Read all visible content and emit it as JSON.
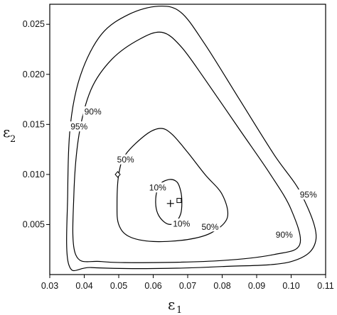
{
  "chart_data": {
    "type": "contour",
    "xlabel": "ε",
    "xlabel_subscript": "1",
    "ylabel": "ε",
    "ylabel_subscript": "2",
    "xlim": [
      0.03,
      0.11
    ],
    "ylim": [
      0.0,
      0.027
    ],
    "x_ticks": [
      "0.03",
      "0.04",
      "0.05",
      "0.06",
      "0.07",
      "0.08",
      "0.09",
      "0.10",
      "0.11"
    ],
    "y_ticks": [
      "0.005",
      "0.010",
      "0.015",
      "0.020",
      "0.025"
    ],
    "x_tick_values": [
      0.03,
      0.04,
      0.05,
      0.06,
      0.07,
      0.08,
      0.09,
      0.1,
      0.11
    ],
    "y_tick_values": [
      0.005,
      0.01,
      0.015,
      0.02,
      0.025
    ],
    "contours": [
      {
        "level": "10%",
        "points": [
          [
            0.0607,
            0.0072
          ],
          [
            0.0612,
            0.0085
          ],
          [
            0.0625,
            0.0092
          ],
          [
            0.065,
            0.0095
          ],
          [
            0.067,
            0.0092
          ],
          [
            0.068,
            0.0083
          ],
          [
            0.0683,
            0.0072
          ],
          [
            0.068,
            0.0061
          ],
          [
            0.0667,
            0.0053
          ],
          [
            0.065,
            0.005
          ],
          [
            0.063,
            0.0053
          ],
          [
            0.0613,
            0.0061
          ]
        ],
        "labels": [
          {
            "text": "10%",
            "x": 0.0613,
            "y": 0.0087
          },
          {
            "text": "10%",
            "x": 0.0682,
            "y": 0.0051
          }
        ]
      },
      {
        "level": "50%",
        "points": [
          [
            0.0495,
            0.007
          ],
          [
            0.05,
            0.01
          ],
          [
            0.052,
            0.012
          ],
          [
            0.058,
            0.014
          ],
          [
            0.0622,
            0.0146
          ],
          [
            0.0655,
            0.014
          ],
          [
            0.07,
            0.0122
          ],
          [
            0.075,
            0.01
          ],
          [
            0.08,
            0.008
          ],
          [
            0.0815,
            0.0057
          ],
          [
            0.077,
            0.0042
          ],
          [
            0.07,
            0.0035
          ],
          [
            0.06,
            0.0033
          ],
          [
            0.053,
            0.0038
          ],
          [
            0.05,
            0.005
          ]
        ],
        "labels": [
          {
            "text": "50%",
            "x": 0.052,
            "y": 0.0115
          },
          {
            "text": "50%",
            "x": 0.0765,
            "y": 0.0048
          }
        ]
      },
      {
        "level": "90%",
        "points": [
          [
            0.0375,
            0.002
          ],
          [
            0.037,
            0.008
          ],
          [
            0.0385,
            0.014
          ],
          [
            0.042,
            0.0185
          ],
          [
            0.048,
            0.0215
          ],
          [
            0.056,
            0.0235
          ],
          [
            0.0625,
            0.0242
          ],
          [
            0.068,
            0.0228
          ],
          [
            0.075,
            0.0195
          ],
          [
            0.085,
            0.0145
          ],
          [
            0.094,
            0.01
          ],
          [
            0.1,
            0.0065
          ],
          [
            0.1025,
            0.003
          ],
          [
            0.095,
            0.002
          ],
          [
            0.08,
            0.0014
          ],
          [
            0.06,
            0.0012
          ],
          [
            0.045,
            0.0013
          ]
        ],
        "labels": [
          {
            "text": "90%",
            "x": 0.0425,
            "y": 0.0163
          },
          {
            "text": "90%",
            "x": 0.098,
            "y": 0.004
          }
        ]
      },
      {
        "level": "95%",
        "points": [
          [
            0.0355,
            0.001
          ],
          [
            0.0352,
            0.008
          ],
          [
            0.036,
            0.015
          ],
          [
            0.039,
            0.02
          ],
          [
            0.045,
            0.024
          ],
          [
            0.053,
            0.026
          ],
          [
            0.0615,
            0.0268
          ],
          [
            0.068,
            0.0262
          ],
          [
            0.075,
            0.023
          ],
          [
            0.085,
            0.0175
          ],
          [
            0.095,
            0.012
          ],
          [
            0.103,
            0.008
          ],
          [
            0.1072,
            0.0035
          ],
          [
            0.1,
            0.0013
          ],
          [
            0.08,
            0.0008
          ],
          [
            0.06,
            0.0006
          ],
          [
            0.042,
            0.0007
          ]
        ],
        "labels": [
          {
            "text": "95%",
            "x": 0.0385,
            "y": 0.0148
          },
          {
            "text": "95%",
            "x": 0.105,
            "y": 0.008
          }
        ]
      }
    ],
    "markers": [
      {
        "shape": "cross",
        "x": 0.065,
        "y": 0.0071
      },
      {
        "shape": "square",
        "x": 0.0675,
        "y": 0.0074
      },
      {
        "shape": "diamond",
        "x": 0.0497,
        "y": 0.01
      }
    ]
  }
}
